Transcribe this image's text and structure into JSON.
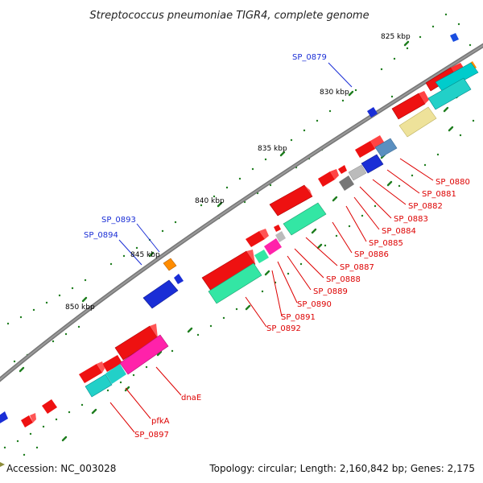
{
  "title": "Streptococcus pneumoniae TIGR4, complete genome",
  "footer": {
    "accession": "Accession: NC_003028",
    "summary": "Topology: circular; Length: 2,160,842 bp; Genes: 2,175"
  },
  "scale_labels": [
    "825 kbp",
    "830 kbp",
    "835 kbp",
    "840 kbp",
    "845 kbp",
    "850 kbp"
  ],
  "gene_labels_red": [
    "SP_0880",
    "SP_0881",
    "SP_0882",
    "SP_0883",
    "SP_0884",
    "SP_0885",
    "SP_0886",
    "SP_0887",
    "SP_0888",
    "SP_0889",
    "SP_0890",
    "SP_0891",
    "SP_0892",
    "dnaE",
    "pfkA",
    "SP_0897"
  ],
  "gene_labels_blue": [
    "SP_0879",
    "SP_0893",
    "SP_0894"
  ],
  "colors": {
    "backbone": "#777777",
    "red_label": "#dd0000",
    "blue_label": "#1a2ed6",
    "ticks": "#1e7d1e"
  }
}
